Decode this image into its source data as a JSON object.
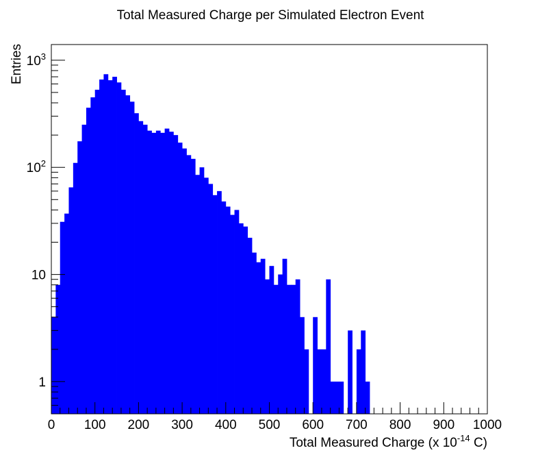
{
  "chart_data": {
    "type": "bar",
    "title": "Total Measured Charge per Simulated Electron Event",
    "xlabel": {
      "pre": "Total Measured Charge (x 10",
      "sup": "-14",
      "post": " C)"
    },
    "ylabel": "Entries",
    "xlim": [
      0,
      1000
    ],
    "ylim": [
      0.5,
      1400
    ],
    "yscale": "log",
    "bin_width": 10,
    "fill_color": "#0000ff",
    "x_ticks": [
      0,
      100,
      200,
      300,
      400,
      500,
      600,
      700,
      800,
      900,
      1000
    ],
    "x_tick_labels": [
      "0",
      "100",
      "200",
      "300",
      "400",
      "500",
      "600",
      "700",
      "800",
      "900",
      "1000"
    ],
    "y_ticks": [
      {
        "value": 1,
        "base": "1",
        "sup": ""
      },
      {
        "value": 10,
        "base": "10",
        "sup": ""
      },
      {
        "value": 100,
        "base": "10",
        "sup": "2"
      },
      {
        "value": 1000,
        "base": "10",
        "sup": "3"
      }
    ],
    "bin_edges_start": 0,
    "values": [
      4,
      8,
      31,
      37,
      65,
      110,
      175,
      250,
      360,
      450,
      530,
      660,
      740,
      650,
      700,
      620,
      530,
      470,
      410,
      320,
      270,
      250,
      220,
      210,
      220,
      210,
      230,
      215,
      200,
      170,
      150,
      130,
      120,
      85,
      100,
      80,
      70,
      55,
      60,
      48,
      43,
      36,
      40,
      30,
      28,
      22,
      16,
      13,
      14,
      9,
      12,
      8,
      10,
      14,
      8,
      8,
      9,
      4,
      2,
      0,
      4,
      2,
      2,
      9,
      1,
      1,
      1,
      0,
      3,
      0,
      2,
      3,
      1,
      0,
      0,
      0,
      0,
      0,
      0,
      0,
      0,
      0,
      0,
      0,
      0,
      0,
      0,
      0,
      0,
      0,
      0,
      0,
      0,
      0,
      0,
      0,
      0,
      0,
      0,
      0
    ]
  }
}
